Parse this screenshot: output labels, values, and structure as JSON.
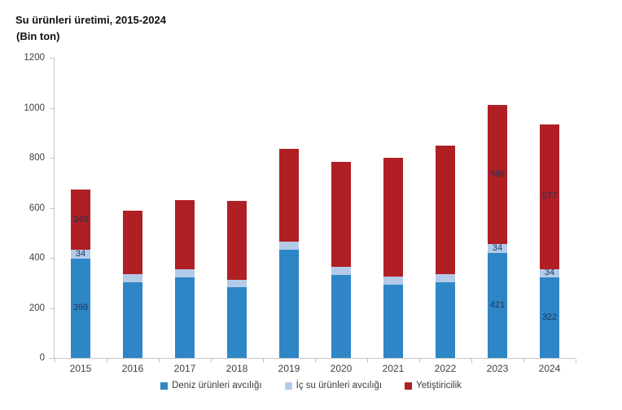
{
  "chart_data": {
    "type": "bar",
    "stacked": true,
    "title": "Su ürünleri üretimi, 2015-2024",
    "subtitle": "(Bin ton)",
    "categories": [
      "2015",
      "2016",
      "2017",
      "2018",
      "2019",
      "2020",
      "2021",
      "2022",
      "2023",
      "2024"
    ],
    "series": [
      {
        "name": "Deniz ürünleri avcılığı",
        "color": "#2e86c6",
        "values": [
          398,
          302,
          322,
          284,
          432,
          331,
          294,
          302,
          421,
          322
        ]
      },
      {
        "name": "İç su ürünleri avcılığı",
        "color": "#b3cbe9",
        "values": [
          34,
          34,
          32,
          30,
          33,
          33,
          33,
          32,
          34,
          34
        ]
      },
      {
        "name": "Yetiştiricilik",
        "color": "#b01f24",
        "values": [
          240,
          253,
          277,
          315,
          372,
          421,
          472,
          515,
          556,
          577
        ]
      }
    ],
    "labeled_categories": [
      "2015",
      "2023",
      "2024"
    ],
    "ylim": [
      0,
      1200
    ],
    "yticks": [
      0,
      200,
      400,
      600,
      800,
      1000,
      1200
    ],
    "legend_position": "bottom",
    "grid": false,
    "value_label_color": "#17365d",
    "axis_color": "#c6c6c6",
    "tick_text_color": "#404040"
  }
}
